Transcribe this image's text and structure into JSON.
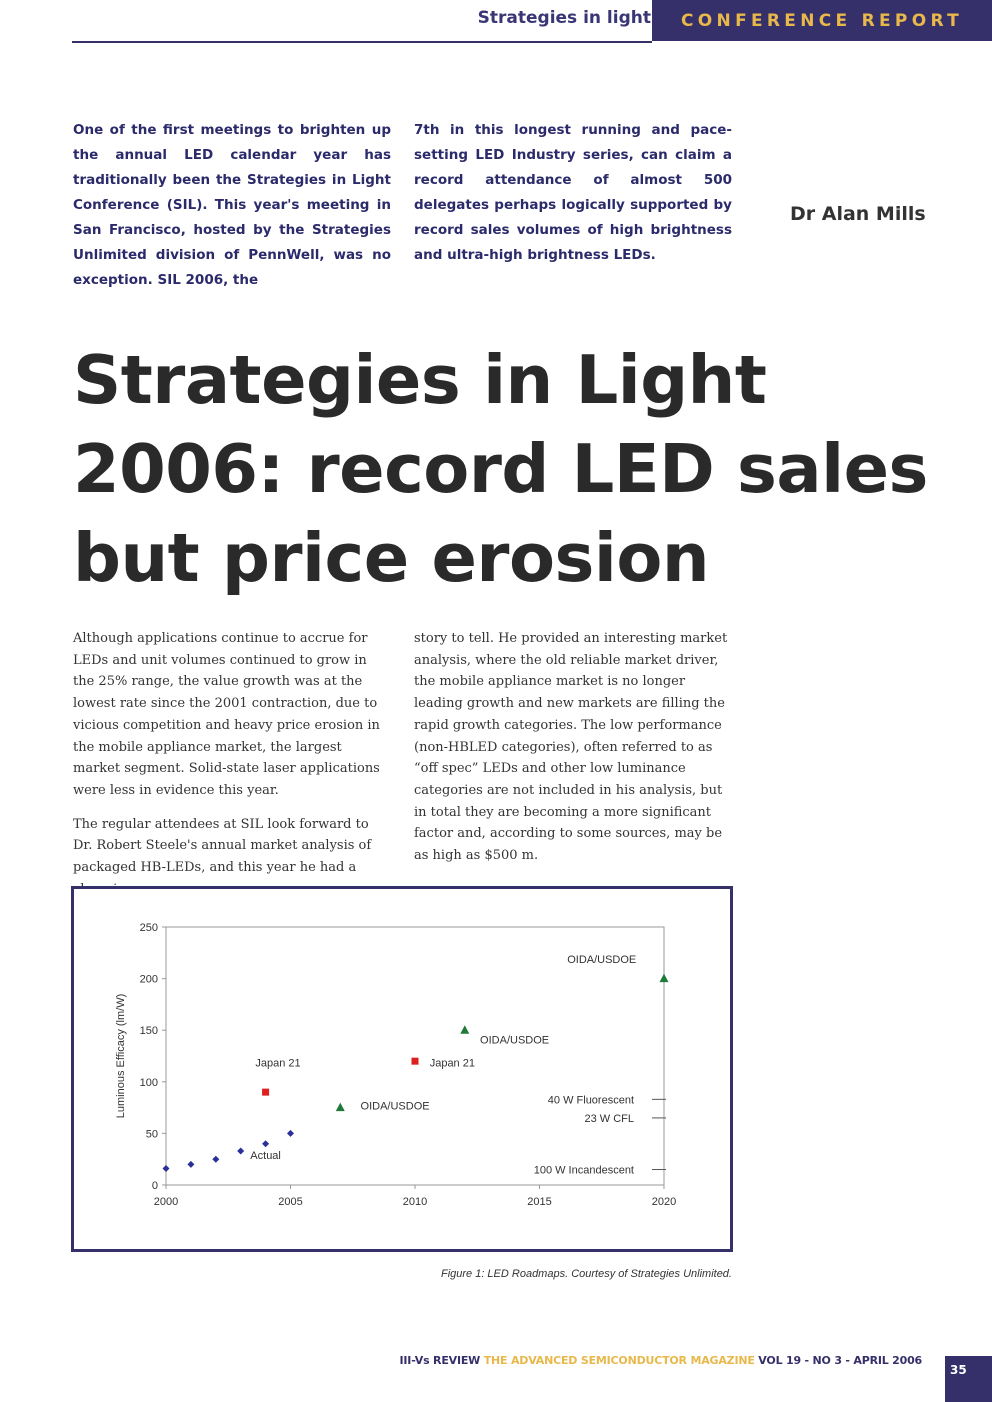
{
  "header": {
    "section": "Strategies in light",
    "band": "CONFERENCE REPORT"
  },
  "intro": {
    "col1": "One of the first meetings to brighten up the annual LED calendar year has traditionally been the Strategies in Light Conference (SIL). This year's meeting in San Francisco, hosted by the Strategies Unlimited division of PennWell, was no exception. SIL 2006, the",
    "col2": "7th in this longest running and pace-setting LED Industry series, can claim a record attendance of almost 500 delegates perhaps logically supported by record sales volumes of high brightness and ultra-high brightness LEDs."
  },
  "author": "Dr Alan Mills",
  "title": "Strategies in Light 2006: record LED sales but price erosion",
  "body": {
    "col1_p1": "Although applications continue to accrue for LEDs and unit volumes continued to grow in the 25% range, the value growth was at the lowest rate since the 2001 contraction, due to vicious competition and heavy price erosion in the mobile appliance market, the largest market segment. Solid-state laser applications were less in evidence this year.",
    "col1_p2": "The regular attendees at SIL look forward to Dr. Robert Steele's annual market analysis of packaged HB-LEDs, and this year he had a changing",
    "col2_p1": "story to tell. He provided an interesting market analysis, where the old reliable market driver, the mobile appliance market is no longer leading growth and new markets are filling the rapid growth categories. The low performance (non-HBLED categories), often referred to as “off spec” LEDs and other low luminance categories are not included in his analysis, but in total they are becoming a more significant factor and, according to some sources, may be as high as $500 m."
  },
  "chart_data": {
    "type": "scatter",
    "ylabel": "Luminous Efficacy (lm/W)",
    "xlabel": "",
    "xlim": [
      2000,
      2020
    ],
    "ylim": [
      0,
      250
    ],
    "x_ticks": [
      "2000",
      "2005",
      "2010",
      "2015",
      "2020"
    ],
    "y_ticks": [
      "0",
      "50",
      "100",
      "150",
      "200",
      "250"
    ],
    "grid": false,
    "series": [
      {
        "name": "Actual",
        "marker": "diamond",
        "color": "#2a2f9a",
        "points": [
          [
            2000,
            16
          ],
          [
            2001,
            20
          ],
          [
            2002,
            25
          ],
          [
            2003,
            33
          ],
          [
            2004,
            40
          ],
          [
            2005,
            50
          ]
        ]
      },
      {
        "name": "Japan 21",
        "marker": "square",
        "color": "#dd1f1f",
        "points": [
          [
            2004,
            90
          ],
          [
            2010,
            120
          ]
        ]
      },
      {
        "name": "OIDA/USDOE",
        "marker": "triangle",
        "color": "#1f7a3a",
        "points": [
          [
            2007,
            75
          ],
          [
            2012,
            150
          ],
          [
            2020,
            200
          ]
        ]
      }
    ],
    "point_labels": [
      {
        "text": "Actual",
        "x": 2004,
        "y": 25
      },
      {
        "text": "Japan 21",
        "x": 2004.5,
        "y": 115
      },
      {
        "text": "Japan 21",
        "x": 2011.5,
        "y": 115
      },
      {
        "text": "OIDA/USDOE",
        "x": 2009.2,
        "y": 73
      },
      {
        "text": "OIDA/USDOE",
        "x": 2014,
        "y": 137
      },
      {
        "text": "OIDA/USDOE",
        "x": 2017.5,
        "y": 215
      }
    ],
    "reference_lines": [
      {
        "label": "40 W Fluorescent",
        "y": 83
      },
      {
        "label": "23 W CFL",
        "y": 65
      },
      {
        "label": "100 W Incandescent",
        "y": 15
      }
    ]
  },
  "caption": "Figure 1: LED Roadmaps. Courtesy of Strategies Unlimited.",
  "footer": {
    "magazine": "III-Vs REVIEW",
    "tagline": "THE ADVANCED SEMICONDUCTOR MAGAZINE",
    "issue": "VOL 19 - NO 3 - APRIL 2006"
  },
  "page_number": "35"
}
